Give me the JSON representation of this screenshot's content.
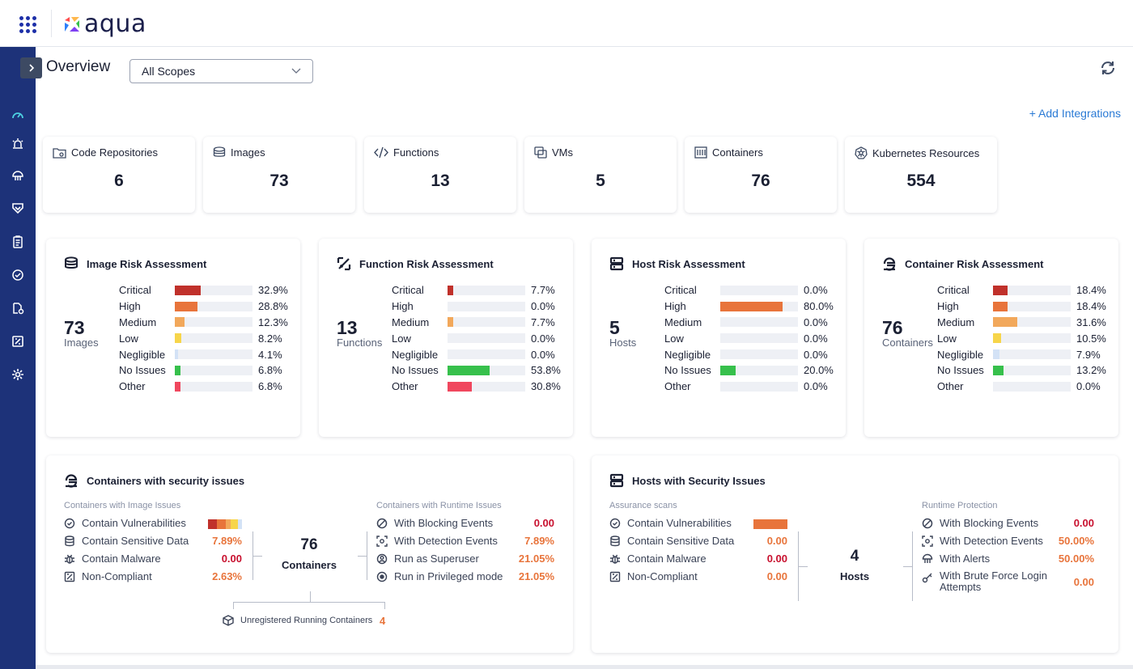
{
  "app": {
    "logo_text": "aqua"
  },
  "header": {
    "title": "Overview",
    "scope": "All Scopes",
    "add_integrations": "+ Add Integrations"
  },
  "sidebar": {
    "items": [
      "dashboard-icon",
      "alerts-icon",
      "cloud-icon",
      "shield-icon",
      "report-icon",
      "vulnerability-icon",
      "workload-icon",
      "compliance-icon",
      "settings-icon"
    ]
  },
  "stats": [
    {
      "label": "Code Repositories",
      "value": "6",
      "icon": "code-repo-icon"
    },
    {
      "label": "Images",
      "value": "73",
      "icon": "images-icon"
    },
    {
      "label": "Functions",
      "value": "13",
      "icon": "functions-icon"
    },
    {
      "label": "VMs",
      "value": "5",
      "icon": "vms-icon"
    },
    {
      "label": "Containers",
      "value": "76",
      "icon": "containers-icon"
    },
    {
      "label": "Kubernetes Resources",
      "value": "554",
      "icon": "kubernetes-icon"
    }
  ],
  "colors": {
    "critical": "#c0312b",
    "high": "#e8743b",
    "medium": "#f2a85b",
    "low": "#f7d54a",
    "negligible": "#d3e2f6",
    "no_issues": "#37c04c",
    "other": "#f0475e",
    "accent": "#2a7ad5",
    "sidebar": "#1d3279"
  },
  "risk_labels": [
    "Critical",
    "High",
    "Medium",
    "Low",
    "Negligible",
    "No Issues",
    "Other"
  ],
  "risk": [
    {
      "title": "Image Risk Assessment",
      "total": "73",
      "unit": "Images",
      "values": [
        "32.9%",
        "28.8%",
        "12.3%",
        "8.2%",
        "4.1%",
        "6.8%",
        "6.8%"
      ],
      "levels": [
        0.329,
        0.288,
        0.123,
        0.082,
        0.041,
        0.068,
        0.068
      ]
    },
    {
      "title": "Function Risk Assessment",
      "total": "13",
      "unit": "Functions",
      "values": [
        "7.7%",
        "0.0%",
        "7.7%",
        "0.0%",
        "0.0%",
        "53.8%",
        "30.8%"
      ],
      "levels": [
        0.077,
        0,
        0.077,
        0,
        0,
        0.538,
        0.308
      ]
    },
    {
      "title": "Host Risk Assessment",
      "total": "5",
      "unit": "Hosts",
      "values": [
        "0.0%",
        "80.0%",
        "0.0%",
        "0.0%",
        "0.0%",
        "20.0%",
        "0.0%"
      ],
      "levels": [
        0,
        0.8,
        0,
        0,
        0,
        0.2,
        0
      ]
    },
    {
      "title": "Container Risk Assessment",
      "total": "76",
      "unit": "Containers",
      "values": [
        "18.4%",
        "18.4%",
        "31.6%",
        "10.5%",
        "7.9%",
        "13.2%",
        "0.0%"
      ],
      "levels": [
        0.184,
        0.184,
        0.316,
        0.105,
        0.079,
        0.132,
        0
      ]
    }
  ],
  "containers_panel": {
    "title": "Containers with security issues",
    "image_issues_label": "Containers with Image Issues",
    "runtime_issues_label": "Containers with Runtime Issues",
    "image_items": [
      {
        "label": "Contain Vulnerabilities",
        "value": ""
      },
      {
        "label": "Contain Sensitive Data",
        "value": "7.89%"
      },
      {
        "label": "Contain Malware",
        "value": "0.00"
      },
      {
        "label": "Non-Compliant",
        "value": "2.63%"
      }
    ],
    "runtime_items": [
      {
        "label": "With Blocking Events",
        "value": "0.00"
      },
      {
        "label": "With Detection Events",
        "value": "7.89%"
      },
      {
        "label": "Run as Superuser",
        "value": "21.05%"
      },
      {
        "label": "Run in Privileged mode",
        "value": "21.05%"
      }
    ],
    "total": "76",
    "total_label": "Containers",
    "unregistered_label": "Unregistered Running Containers",
    "unregistered_value": "4"
  },
  "hosts_panel": {
    "title": "Hosts with Security Issues",
    "assurance_label": "Assurance scans",
    "runtime_label": "Runtime Protection",
    "assurance_items": [
      {
        "label": "Contain Vulnerabilities",
        "value": ""
      },
      {
        "label": "Contain Sensitive Data",
        "value": "0.00"
      },
      {
        "label": "Contain Malware",
        "value": "0.00"
      },
      {
        "label": "Non-Compliant",
        "value": "0.00"
      }
    ],
    "runtime_items": [
      {
        "label": "With Blocking Events",
        "value": "0.00"
      },
      {
        "label": "With Detection Events",
        "value": "50.00%"
      },
      {
        "label": "With Alerts",
        "value": "50.00%"
      },
      {
        "label": "With Brute Force Login",
        "label2": "Attempts",
        "value": "0.00"
      }
    ],
    "total": "4",
    "total_label": "Hosts"
  }
}
